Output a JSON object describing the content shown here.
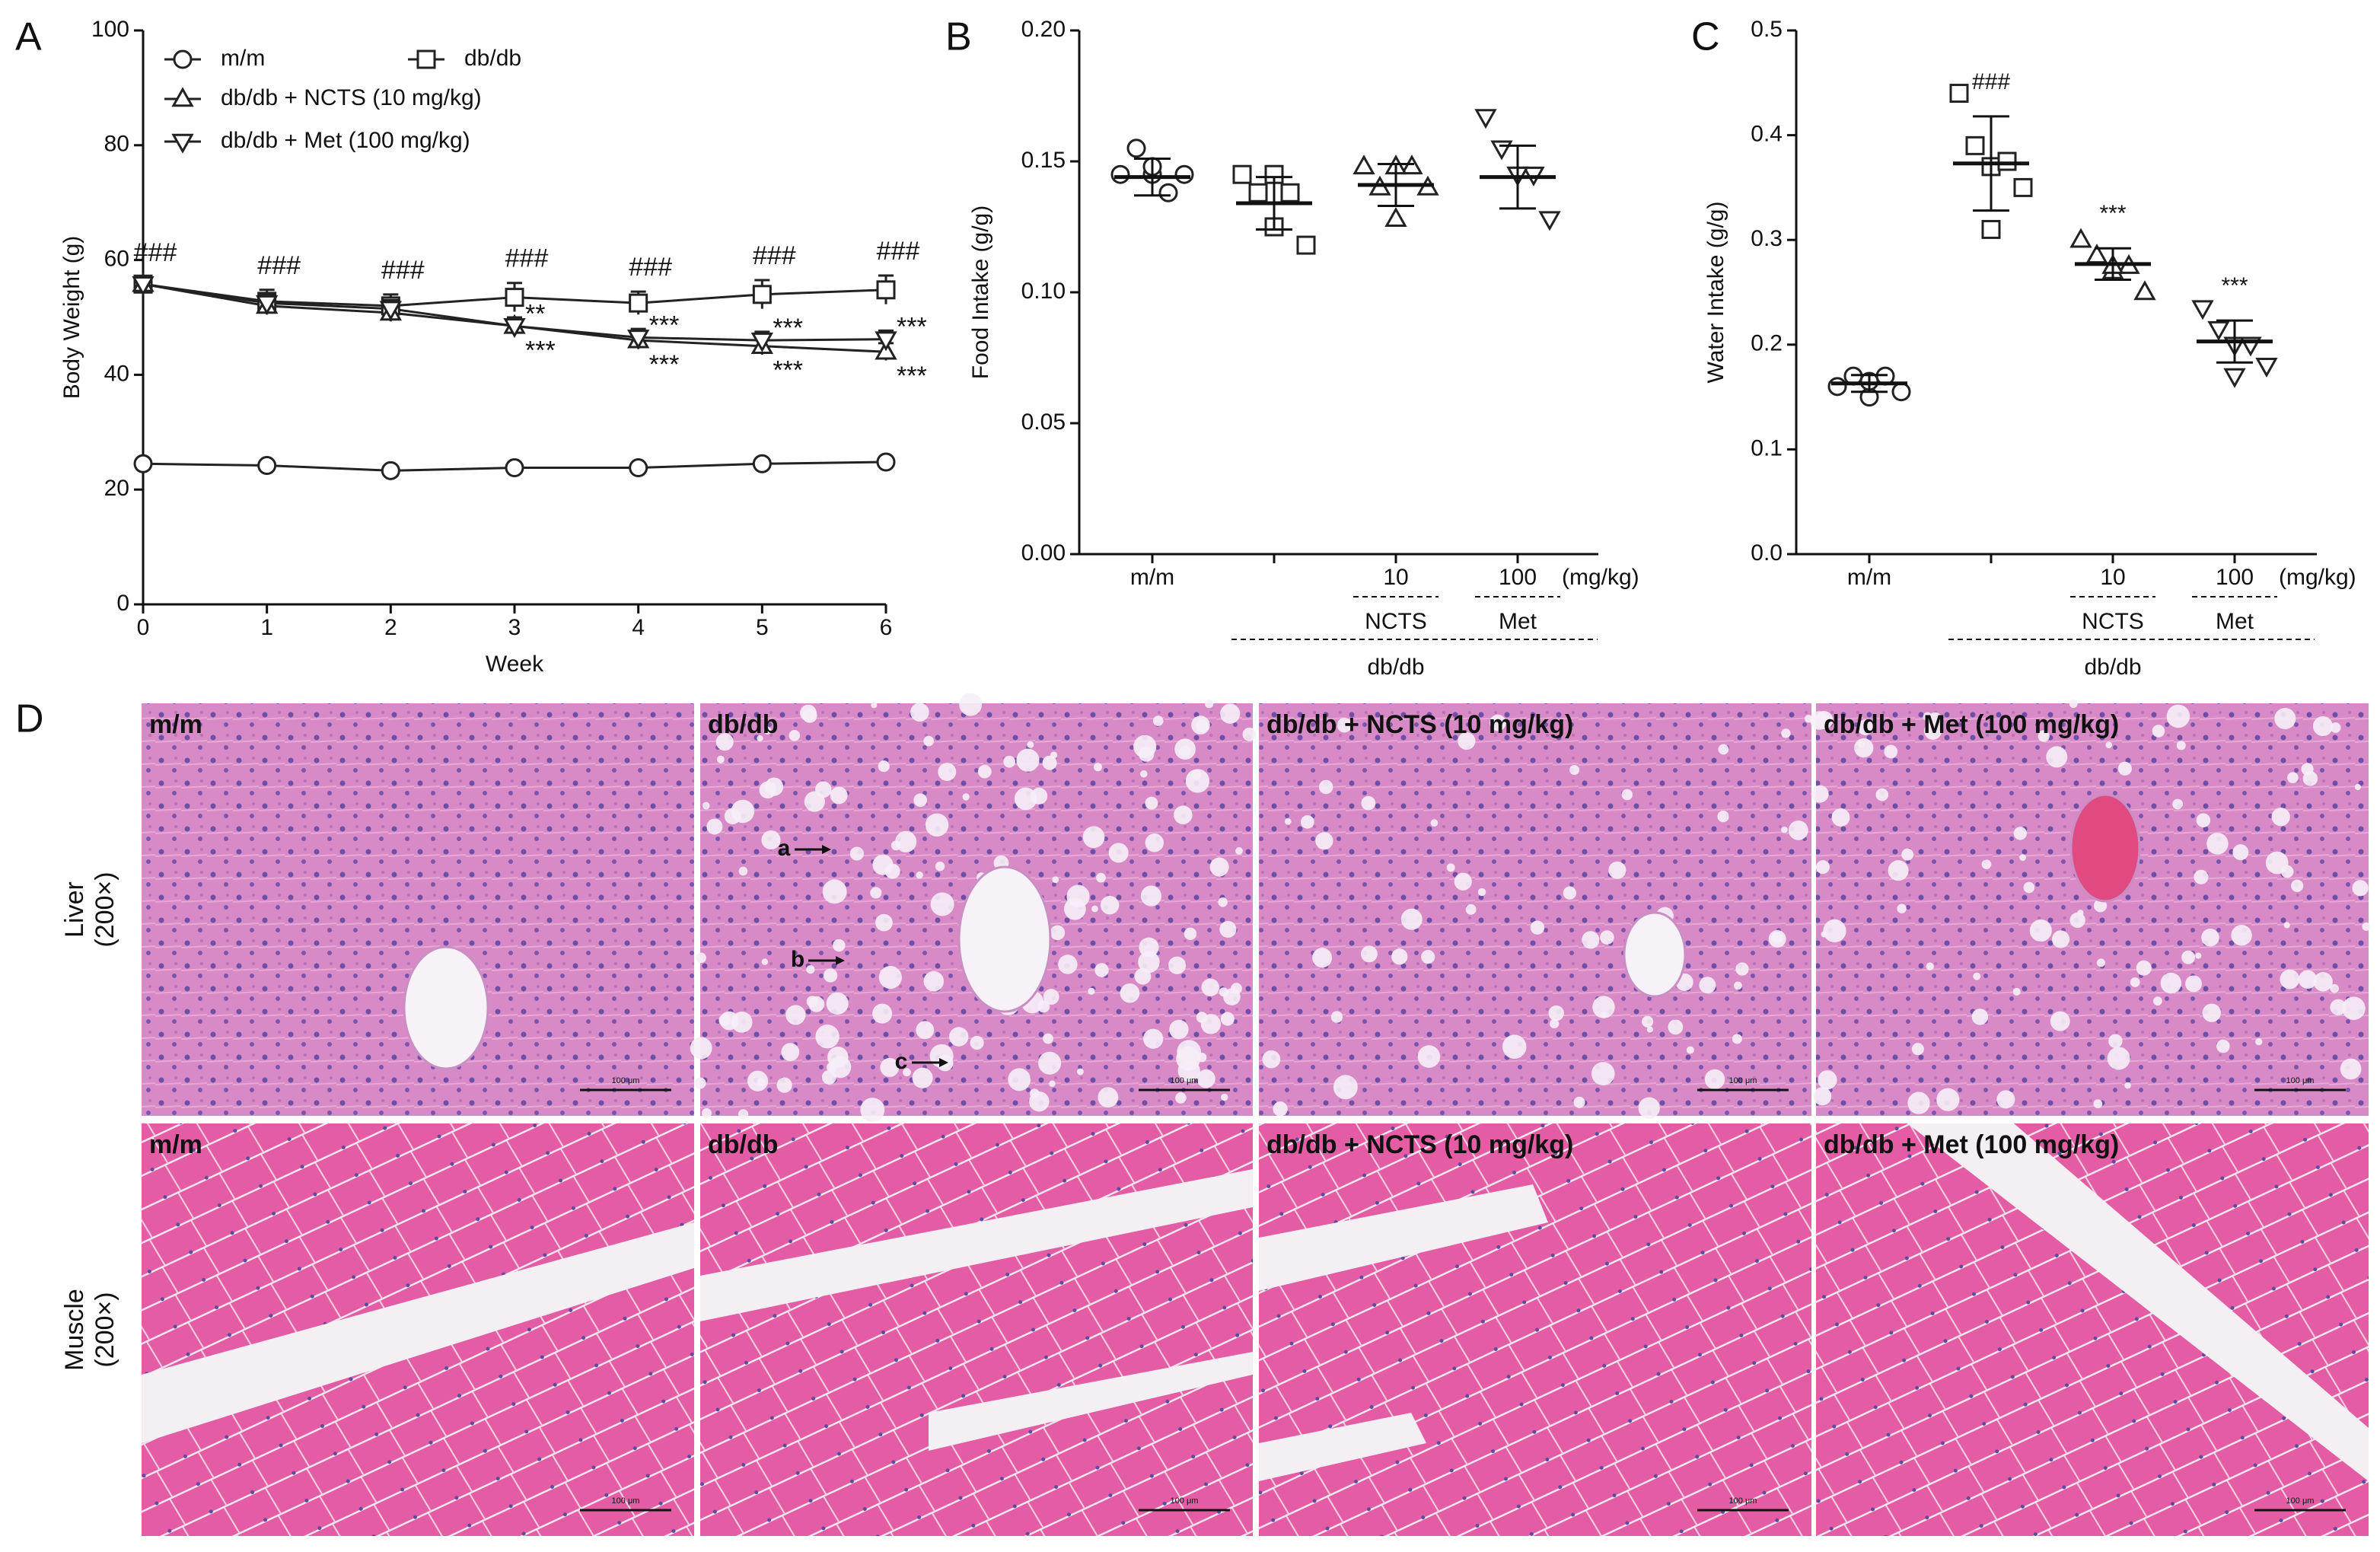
{
  "chart_data": [
    {
      "type": "line",
      "panel": "A",
      "y_label": "Body Weight (g)",
      "x_label": "Week",
      "x": [
        0,
        1,
        2,
        3,
        4,
        5,
        6
      ],
      "xlim": [
        0,
        6
      ],
      "xticks": [
        0,
        1,
        2,
        3,
        4,
        5,
        6
      ],
      "ylim": [
        0,
        100
      ],
      "yticks": [
        0,
        20,
        40,
        60,
        80,
        100
      ],
      "series": [
        {
          "name": "m/m",
          "marker": "circle",
          "color": "#222",
          "values": [
            24.5,
            24.2,
            23.3,
            23.8,
            23.8,
            24.5,
            24.8
          ],
          "errors": [
            0.5,
            0.6,
            0.6,
            0.5,
            0.5,
            0.6,
            0.6
          ],
          "labels": [
            null,
            null,
            null,
            null,
            null,
            null,
            null
          ]
        },
        {
          "name": "db/db",
          "marker": "square",
          "color": "#222",
          "values": [
            55.8,
            52.8,
            52.0,
            53.5,
            52.5,
            54.0,
            54.8
          ],
          "errors": [
            1.2,
            2.0,
            2.0,
            2.5,
            2.0,
            2.5,
            2.5
          ],
          "labels": [
            "###",
            "###",
            "###",
            "###",
            "###",
            "###",
            "###"
          ]
        },
        {
          "name": "db/db + NCTS (10 mg/kg)",
          "marker": "triangle-up",
          "color": "#222",
          "values": [
            55.8,
            52.0,
            50.8,
            48.5,
            46.0,
            45.0,
            44.0
          ],
          "errors": [
            1.0,
            1.5,
            1.5,
            1.5,
            1.5,
            1.5,
            1.5
          ],
          "labels": [
            null,
            null,
            null,
            "***",
            "***",
            "***",
            "***"
          ]
        },
        {
          "name": "db/db + Met (100 mg/kg)",
          "marker": "triangle-down",
          "color": "#222",
          "values": [
            55.8,
            52.5,
            51.5,
            48.5,
            46.5,
            46.0,
            46.2
          ],
          "errors": [
            1.0,
            1.5,
            1.5,
            1.5,
            1.5,
            1.5,
            1.5
          ],
          "labels": [
            null,
            null,
            null,
            "**",
            "***",
            "***",
            "***"
          ]
        }
      ]
    },
    {
      "type": "dot",
      "panel": "B",
      "y_label": "Food Intake (g/g)",
      "categories": [
        "m/m",
        null,
        "10",
        "100"
      ],
      "unit_label": "(mg/kg)",
      "group_labels": [
        "NCTS",
        "Met",
        "db/db"
      ],
      "markers": [
        "circle",
        "square",
        "triangle-up",
        "triangle-down"
      ],
      "ylim": [
        0,
        0.2
      ],
      "yticks": [
        {
          "value": 0,
          "label": "0.00"
        },
        {
          "value": 0.05,
          "label": "0.05"
        },
        {
          "value": 0.1,
          "label": "0.10"
        },
        {
          "value": 0.15,
          "label": "0.15"
        },
        {
          "value": 0.2,
          "label": "0.20"
        }
      ],
      "points": [
        [
          0.145,
          0.155,
          0.145,
          0.138,
          0.145,
          0.148
        ],
        [
          0.145,
          0.138,
          0.125,
          0.138,
          0.118,
          0.145
        ],
        [
          0.148,
          0.14,
          0.128,
          0.148,
          0.14,
          0.148
        ],
        [
          0.167,
          0.155,
          0.145,
          0.145,
          0.128,
          0.145
        ]
      ],
      "means": [
        0.144,
        0.134,
        0.141,
        0.144
      ],
      "sds": [
        0.007,
        0.01,
        0.008,
        0.012
      ],
      "significance": [
        null,
        null,
        null,
        null
      ]
    },
    {
      "type": "dot",
      "panel": "C",
      "y_label": "Water Intake (g/g)",
      "categories": [
        "m/m",
        null,
        "10",
        "100"
      ],
      "unit_label": "(mg/kg)",
      "group_labels": [
        "NCTS",
        "Met",
        "db/db"
      ],
      "markers": [
        "circle",
        "square",
        "triangle-up",
        "triangle-down"
      ],
      "ylim": [
        0,
        0.5
      ],
      "yticks": [
        {
          "value": 0,
          "label": "0.0"
        },
        0.1,
        0.2,
        0.3,
        0.4,
        0.5
      ],
      "points": [
        [
          0.16,
          0.17,
          0.15,
          0.17,
          0.155,
          0.165
        ],
        [
          0.44,
          0.39,
          0.37,
          0.375,
          0.35,
          0.31
        ],
        [
          0.3,
          0.285,
          0.27,
          0.275,
          0.25,
          0.275
        ],
        [
          0.235,
          0.215,
          0.2,
          0.2,
          0.18,
          0.17
        ]
      ],
      "means": [
        0.163,
        0.373,
        0.277,
        0.203
      ],
      "sds": [
        0.008,
        0.045,
        0.015,
        0.02
      ],
      "significance": [
        null,
        "###",
        "***",
        "***"
      ]
    }
  ],
  "histology": {
    "panel": "D",
    "columns": [
      "m/m",
      "db/db",
      "db/db + NCTS (10 mg/kg)",
      "db/db + Met (100 mg/kg)"
    ],
    "rows": [
      {
        "tissue": "Liver",
        "magnification": "(200×)"
      },
      {
        "tissue": "Muscle",
        "magnification": "(200×)"
      }
    ],
    "scale_bar": "100 μm",
    "arrows": [
      "a",
      "b",
      "c"
    ]
  }
}
